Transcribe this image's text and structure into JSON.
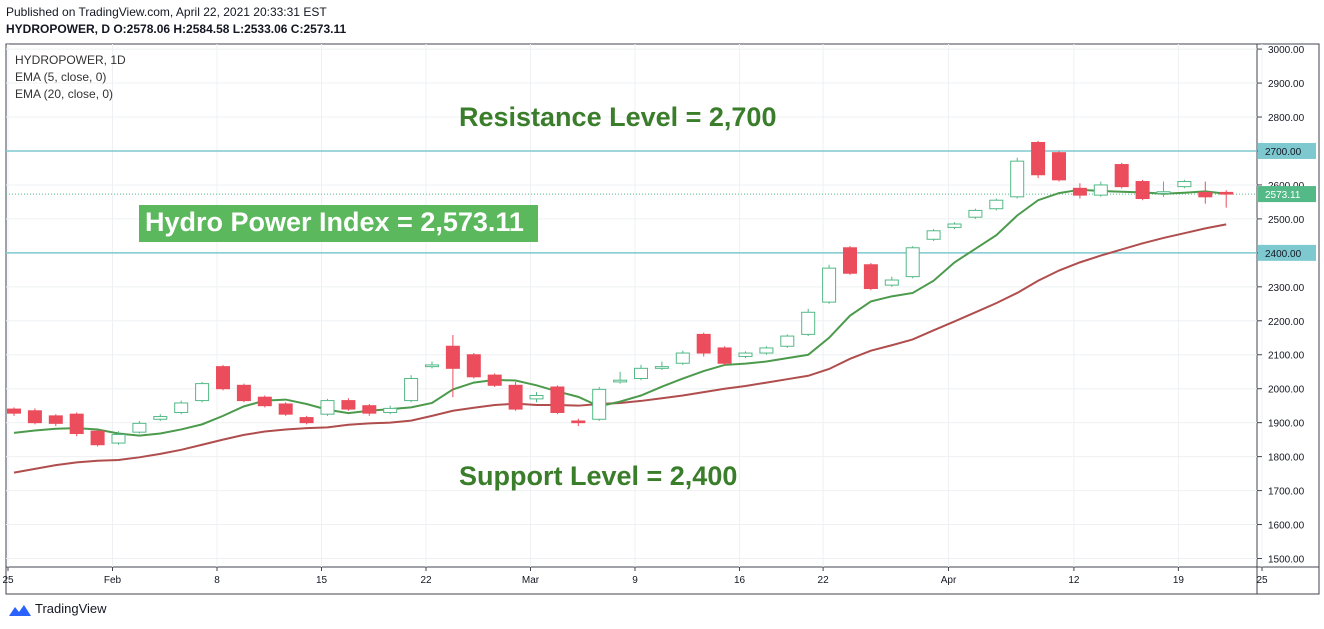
{
  "header": {
    "published": "Published on TradingView.com, April 22, 2021 20:33:31 EST",
    "ohlc": "HYDROPOWER, D  O:2578.06 H:2584.58 L:2533.06 C:2573.11"
  },
  "legend": {
    "symbol": "HYDROPOWER, 1D",
    "ema5": "EMA (5, close, 0)",
    "ema20": "EMA (20, close, 0)"
  },
  "annotations": {
    "resistance": "Resistance Level = 2,700",
    "support": "Support Level = 2,400",
    "index": "Hydro Power Index = 2,573.11"
  },
  "brand": "TradingView",
  "colors": {
    "up": "#53b987",
    "down": "#eb4d5c",
    "ema5": "#4c9a4c",
    "ema20": "#b04d4d",
    "level": "#7ec9d0",
    "annotation": "#3a7d2a",
    "last_price_tag": "#53b987"
  },
  "chart_data": {
    "type": "candlestick",
    "ylim": [
      1475,
      3015
    ],
    "y_ticks": [
      1500,
      1600,
      1700,
      1800,
      1900,
      2000,
      2100,
      2200,
      2300,
      2400,
      2500,
      2600,
      2700,
      2800,
      2900,
      3000
    ],
    "y_tick_labels": [
      "1500.00",
      "1600.00",
      "1700.00",
      "1800.00",
      "1900.00",
      "2000.00",
      "2100.00",
      "2200.00",
      "2300.00",
      "2400.00",
      "2500.00",
      "2600.00",
      "2700.00",
      "2800.00",
      "2900.00",
      "3000.00"
    ],
    "x_tick_labels": [
      "25",
      "Feb",
      "8",
      "15",
      "22",
      "Mar",
      "9",
      "16",
      "22",
      "Apr",
      "12",
      "19",
      "25"
    ],
    "levels": [
      {
        "value": 2700,
        "label": "2700.00"
      },
      {
        "value": 2400,
        "label": "2400.00"
      }
    ],
    "last_price": {
      "value": 2573.11,
      "label": "2573.11"
    },
    "candles": [
      {
        "o": 1940,
        "h": 1945,
        "l": 1920,
        "c": 1928
      },
      {
        "o": 1935,
        "h": 1942,
        "l": 1895,
        "c": 1900
      },
      {
        "o": 1920,
        "h": 1925,
        "l": 1890,
        "c": 1898
      },
      {
        "o": 1925,
        "h": 1930,
        "l": 1860,
        "c": 1868
      },
      {
        "o": 1875,
        "h": 1880,
        "l": 1830,
        "c": 1835
      },
      {
        "o": 1840,
        "h": 1875,
        "l": 1835,
        "c": 1865
      },
      {
        "o": 1872,
        "h": 1905,
        "l": 1868,
        "c": 1898
      },
      {
        "o": 1910,
        "h": 1925,
        "l": 1905,
        "c": 1918
      },
      {
        "o": 1930,
        "h": 1965,
        "l": 1925,
        "c": 1958
      },
      {
        "o": 1965,
        "h": 2020,
        "l": 1960,
        "c": 2015
      },
      {
        "o": 2065,
        "h": 2070,
        "l": 1995,
        "c": 2000
      },
      {
        "o": 2010,
        "h": 2015,
        "l": 1960,
        "c": 1965
      },
      {
        "o": 1975,
        "h": 1980,
        "l": 1945,
        "c": 1950
      },
      {
        "o": 1955,
        "h": 1960,
        "l": 1920,
        "c": 1925
      },
      {
        "o": 1915,
        "h": 1920,
        "l": 1895,
        "c": 1900
      },
      {
        "o": 1925,
        "h": 1970,
        "l": 1920,
        "c": 1965
      },
      {
        "o": 1965,
        "h": 1972,
        "l": 1935,
        "c": 1940
      },
      {
        "o": 1950,
        "h": 1955,
        "l": 1920,
        "c": 1928
      },
      {
        "o": 1930,
        "h": 1950,
        "l": 1925,
        "c": 1942
      },
      {
        "o": 1965,
        "h": 2040,
        "l": 1960,
        "c": 2030
      },
      {
        "o": 2065,
        "h": 2080,
        "l": 2060,
        "c": 2070
      },
      {
        "o": 2125,
        "h": 2158,
        "l": 1975,
        "c": 2060
      },
      {
        "o": 2100,
        "h": 2105,
        "l": 2030,
        "c": 2035
      },
      {
        "o": 2040,
        "h": 2045,
        "l": 2005,
        "c": 2010
      },
      {
        "o": 2010,
        "h": 2020,
        "l": 1935,
        "c": 1940
      },
      {
        "o": 1970,
        "h": 1990,
        "l": 1960,
        "c": 1980
      },
      {
        "o": 2005,
        "h": 2010,
        "l": 1925,
        "c": 1930
      },
      {
        "o": 1905,
        "h": 1912,
        "l": 1890,
        "c": 1900
      },
      {
        "o": 1910,
        "h": 2005,
        "l": 1905,
        "c": 1998
      },
      {
        "o": 2020,
        "h": 2050,
        "l": 2015,
        "c": 2025
      },
      {
        "o": 2030,
        "h": 2070,
        "l": 2025,
        "c": 2060
      },
      {
        "o": 2060,
        "h": 2080,
        "l": 2055,
        "c": 2065
      },
      {
        "o": 2075,
        "h": 2112,
        "l": 2070,
        "c": 2105
      },
      {
        "o": 2160,
        "h": 2165,
        "l": 2095,
        "c": 2105
      },
      {
        "o": 2120,
        "h": 2125,
        "l": 2070,
        "c": 2075
      },
      {
        "o": 2095,
        "h": 2110,
        "l": 2090,
        "c": 2105
      },
      {
        "o": 2105,
        "h": 2125,
        "l": 2100,
        "c": 2120
      },
      {
        "o": 2125,
        "h": 2160,
        "l": 2120,
        "c": 2155
      },
      {
        "o": 2160,
        "h": 2235,
        "l": 2155,
        "c": 2225
      },
      {
        "o": 2255,
        "h": 2365,
        "l": 2250,
        "c": 2355
      },
      {
        "o": 2415,
        "h": 2420,
        "l": 2335,
        "c": 2340
      },
      {
        "o": 2365,
        "h": 2370,
        "l": 2290,
        "c": 2295
      },
      {
        "o": 2305,
        "h": 2330,
        "l": 2300,
        "c": 2320
      },
      {
        "o": 2330,
        "h": 2420,
        "l": 2325,
        "c": 2415
      },
      {
        "o": 2440,
        "h": 2470,
        "l": 2435,
        "c": 2465
      },
      {
        "o": 2475,
        "h": 2490,
        "l": 2470,
        "c": 2485
      },
      {
        "o": 2505,
        "h": 2530,
        "l": 2500,
        "c": 2525
      },
      {
        "o": 2530,
        "h": 2560,
        "l": 2525,
        "c": 2555
      },
      {
        "o": 2565,
        "h": 2680,
        "l": 2560,
        "c": 2670
      },
      {
        "o": 2725,
        "h": 2730,
        "l": 2620,
        "c": 2630
      },
      {
        "o": 2695,
        "h": 2700,
        "l": 2610,
        "c": 2615
      },
      {
        "o": 2590,
        "h": 2605,
        "l": 2560,
        "c": 2570
      },
      {
        "o": 2570,
        "h": 2610,
        "l": 2565,
        "c": 2600
      },
      {
        "o": 2660,
        "h": 2665,
        "l": 2590,
        "c": 2595
      },
      {
        "o": 2610,
        "h": 2615,
        "l": 2555,
        "c": 2560
      },
      {
        "o": 2575,
        "h": 2610,
        "l": 2565,
        "c": 2580
      },
      {
        "o": 2595,
        "h": 2615,
        "l": 2590,
        "c": 2610
      },
      {
        "o": 2578,
        "h": 2610,
        "l": 2545,
        "c": 2565
      },
      {
        "o": 2578.06,
        "h": 2584.58,
        "l": 2533.06,
        "c": 2573.11
      }
    ],
    "ema5": [
      1870,
      1877,
      1882,
      1884,
      1880,
      1868,
      1862,
      1868,
      1880,
      1895,
      1920,
      1948,
      1965,
      1968,
      1955,
      1938,
      1928,
      1935,
      1940,
      1945,
      1958,
      1998,
      2018,
      2026,
      2024,
      2010,
      1992,
      1976,
      1948,
      1962,
      1980,
      2006,
      2030,
      2052,
      2070,
      2074,
      2080,
      2090,
      2100,
      2150,
      2215,
      2257,
      2272,
      2282,
      2318,
      2372,
      2412,
      2452,
      2510,
      2555,
      2576,
      2586,
      2582,
      2580,
      2578,
      2574,
      2577,
      2581,
      2574
    ],
    "ema20": [
      1753,
      1764,
      1775,
      1783,
      1788,
      1790,
      1798,
      1808,
      1820,
      1835,
      1850,
      1864,
      1874,
      1880,
      1884,
      1886,
      1894,
      1898,
      1900,
      1906,
      1920,
      1935,
      1944,
      1952,
      1956,
      1952,
      1952,
      1950,
      1955,
      1958,
      1964,
      1972,
      1980,
      1990,
      2000,
      2008,
      2018,
      2028,
      2038,
      2058,
      2088,
      2112,
      2128,
      2145,
      2172,
      2198,
      2225,
      2252,
      2282,
      2318,
      2348,
      2372,
      2392,
      2410,
      2428,
      2444,
      2458,
      2472,
      2484
    ]
  }
}
